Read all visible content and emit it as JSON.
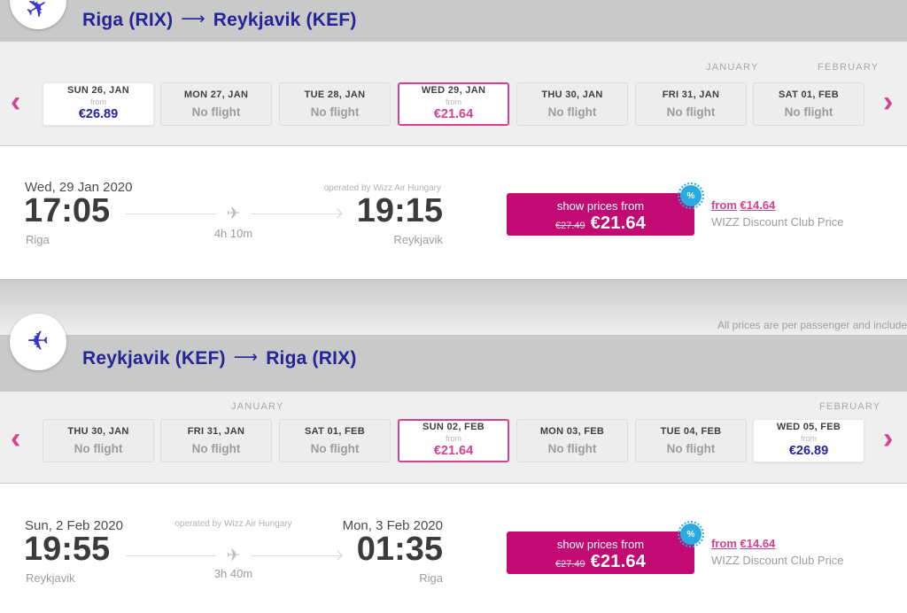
{
  "brand": {
    "pink": "#c10a72",
    "accent_pink": "#d6418f",
    "navy": "#242499",
    "badge_blue": "#29abe2"
  },
  "icons": {
    "plane": "✈",
    "route_arrow": "⟶",
    "prev": "‹",
    "next": "›",
    "percent_badge": "%"
  },
  "labels": {
    "from": "from",
    "no_flight": "No flight",
    "show_prices_from": "show prices from",
    "operated_by": "operated by Wizz Air Hungary",
    "club_price_label": "WIZZ Discount Club Price",
    "notice": "All prices are per passenger and include taxes"
  },
  "outbound": {
    "title": {
      "origin": "Riga (RIX)",
      "destination": "Reykjavik (KEF)"
    },
    "months": {
      "first": "JANUARY",
      "second": "FEBRUARY"
    },
    "days": [
      {
        "label": "SUN 26, JAN",
        "state": "available",
        "price": "€26.89"
      },
      {
        "label": "MON 27, JAN",
        "state": "no_flight"
      },
      {
        "label": "TUE 28, JAN",
        "state": "no_flight"
      },
      {
        "label": "WED 29, JAN",
        "state": "selected",
        "price": "€21.64"
      },
      {
        "label": "THU 30, JAN",
        "state": "no_flight"
      },
      {
        "label": "FRI 31, JAN",
        "state": "no_flight"
      },
      {
        "label": "SAT 01, FEB",
        "state": "no_flight"
      }
    ],
    "flight": {
      "dep_date": "Wed, 29 Jan 2020",
      "dep_time": "17:05",
      "dep_city": "Riga",
      "duration": "4h 10m",
      "arr_time": "19:15",
      "arr_city": "Reykjavik"
    },
    "pricing": {
      "old_price": "€27.49",
      "price": "€21.64",
      "club_price": "€14.64"
    }
  },
  "inbound": {
    "title": {
      "origin": "Reykjavik (KEF)",
      "destination": "Riga (RIX)"
    },
    "months": {
      "first": "JANUARY",
      "second": "FEBRUARY"
    },
    "days": [
      {
        "label": "THU 30, JAN",
        "state": "no_flight"
      },
      {
        "label": "FRI 31, JAN",
        "state": "no_flight"
      },
      {
        "label": "SAT 01, FEB",
        "state": "no_flight"
      },
      {
        "label": "SUN 02, FEB",
        "state": "selected",
        "price": "€21.64"
      },
      {
        "label": "MON 03, FEB",
        "state": "no_flight"
      },
      {
        "label": "TUE 04, FEB",
        "state": "no_flight"
      },
      {
        "label": "WED 05, FEB",
        "state": "available",
        "price": "€26.89"
      }
    ],
    "flight": {
      "dep_date": "Sun, 2 Feb 2020",
      "dep_time": "19:55",
      "dep_city": "Reykjavik",
      "duration": "3h 40m",
      "arr_date": "Mon, 3 Feb 2020",
      "arr_time": "01:35",
      "arr_city": "Riga"
    },
    "pricing": {
      "old_price": "€27.49",
      "price": "€21.64",
      "club_price": "€14.64"
    }
  }
}
